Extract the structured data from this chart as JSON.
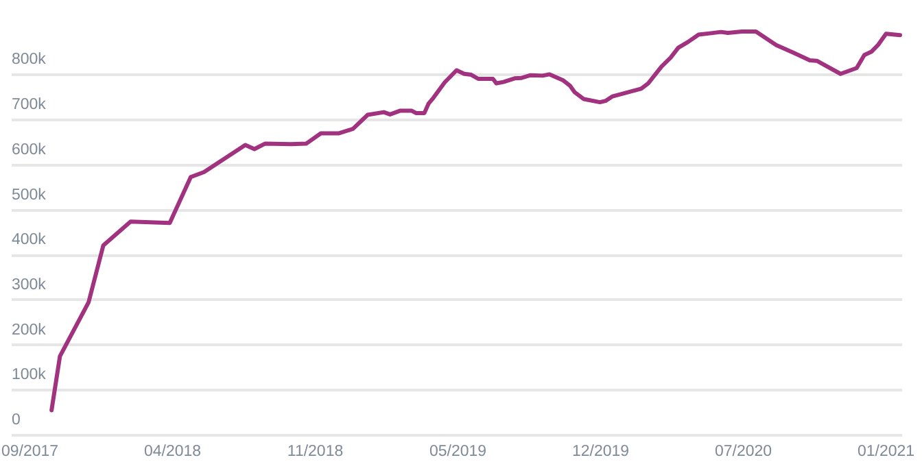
{
  "chart_data": {
    "type": "line",
    "color": "#a0327f",
    "grid": "y",
    "x": [
      "2017-10-22",
      "2017-11-03",
      "2017-12-14",
      "2018-01-04",
      "2018-02-12",
      "2018-04-09",
      "2018-05-09",
      "2018-05-28",
      "2018-07-26",
      "2018-08-08",
      "2018-08-23",
      "2018-09-29",
      "2018-10-21",
      "2018-11-11",
      "2018-12-07",
      "2018-12-27",
      "2019-01-17",
      "2019-02-09",
      "2019-02-18",
      "2019-03-04",
      "2019-03-21",
      "2019-03-27",
      "2019-04-08",
      "2019-04-14",
      "2019-04-21",
      "2019-05-07",
      "2019-05-24",
      "2019-06-04",
      "2019-06-14",
      "2019-06-24",
      "2019-07-15",
      "2019-07-20",
      "2019-07-30",
      "2019-08-15",
      "2019-08-25",
      "2019-09-07",
      "2019-09-24",
      "2019-10-04",
      "2019-10-23",
      "2019-11-02",
      "2019-11-09",
      "2019-11-22",
      "2019-12-15",
      "2019-12-23",
      "2020-01-02",
      "2020-02-12",
      "2020-02-22",
      "2020-03-12",
      "2020-03-25",
      "2020-04-05",
      "2020-04-19",
      "2020-05-04",
      "2020-05-20",
      "2020-06-05",
      "2020-06-15",
      "2020-07-05",
      "2020-07-25",
      "2020-08-23",
      "2020-09-18",
      "2020-10-10",
      "2020-10-20",
      "2020-11-23",
      "2020-12-16",
      "2020-12-27",
      "2021-01-06",
      "2021-01-16",
      "2021-01-27",
      "2021-02-16"
    ],
    "values": [
      54000,
      174000,
      294000,
      420000,
      473000,
      470000,
      572000,
      583000,
      643000,
      634000,
      646000,
      645000,
      646000,
      669000,
      669000,
      679000,
      710000,
      716000,
      711000,
      719000,
      719000,
      714000,
      714000,
      735000,
      748000,
      782000,
      809000,
      801000,
      799000,
      790000,
      790000,
      780000,
      783000,
      791000,
      792000,
      798000,
      797000,
      800000,
      787000,
      775000,
      760000,
      745000,
      738000,
      741000,
      751000,
      768000,
      780000,
      817000,
      837000,
      859000,
      872000,
      888000,
      891000,
      894000,
      892000,
      895000,
      895000,
      865000,
      847000,
      831000,
      830000,
      801000,
      814000,
      843000,
      850000,
      866000,
      890000,
      887000
    ],
    "xlim": [
      "2017-08-25",
      "2021-02-18"
    ],
    "xticks": [
      {
        "value": "2017-09-20",
        "label": "09/2017"
      },
      {
        "value": "2018-04-12",
        "label": "04/2018"
      },
      {
        "value": "2018-11-02",
        "label": "11/2018"
      },
      {
        "value": "2019-05-25",
        "label": "05/2019"
      },
      {
        "value": "2019-12-15",
        "label": "12/2019"
      },
      {
        "value": "2020-07-06",
        "label": "07/2020"
      },
      {
        "value": "2021-01-26",
        "label": "01/2021"
      }
    ],
    "ylim": [
      0,
      965000
    ],
    "yticks": [
      0,
      {
        "value": 100000,
        "label": "100k"
      },
      {
        "value": 200000,
        "label": "200k"
      },
      {
        "value": 300000,
        "label": "300k"
      },
      {
        "value": 400000,
        "label": "400k"
      },
      {
        "value": 500000,
        "label": "500k"
      },
      {
        "value": 600000,
        "label": "600k"
      },
      {
        "value": 700000,
        "label": "700k"
      },
      {
        "value": 800000,
        "label": "800k"
      }
    ]
  }
}
